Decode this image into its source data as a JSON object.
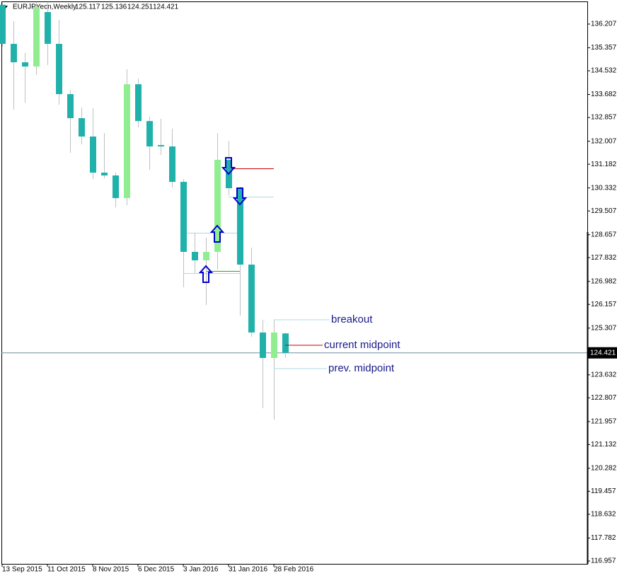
{
  "chart_data": {
    "type": "candlestick",
    "title": "EURJPYecn,Weekly",
    "categories": [
      "13 Sep 2015",
      null,
      null,
      null,
      "11 Oct 2015",
      null,
      null,
      null,
      "8 Nov 2015",
      null,
      null,
      null,
      "6 Dec 2015",
      null,
      null,
      null,
      "3 Jan 2016",
      null,
      null,
      null,
      "31 Jan 2016",
      null,
      null,
      null,
      "28 Feb 2016",
      null
    ],
    "open": [
      136.9,
      135.497,
      134.837,
      134.685,
      136.638,
      135.497,
      133.696,
      132.834,
      132.175,
      130.881,
      130.78,
      129.968,
      134.05,
      132.73,
      131.87,
      131.82,
      130.55,
      128.04,
      127.736,
      128.04,
      131.34,
      130.323,
      127.584,
      125.15,
      124.236,
      125.117
    ],
    "high": [
      137.0,
      136.31,
      135.167,
      137.0,
      137.0,
      136.36,
      133.85,
      133.214,
      133.19,
      132.3,
      130.88,
      134.584,
      134.254,
      132.885,
      132.81,
      132.454,
      130.65,
      128.725,
      128.55,
      132.3,
      132.02,
      130.374,
      128.19,
      125.606,
      125.606,
      125.136
    ],
    "low": [
      135.4,
      133.14,
      133.39,
      134.38,
      134.736,
      133.316,
      131.59,
      131.895,
      130.65,
      130.68,
      129.64,
      129.715,
      132.504,
      130.98,
      131.515,
      130.35,
      126.77,
      127.28,
      126.14,
      127.41,
      130.07,
      125.76,
      124.998,
      122.436,
      122.03,
      124.251
    ],
    "close": [
      135.497,
      134.837,
      134.685,
      136.816,
      135.497,
      133.696,
      132.834,
      132.175,
      130.881,
      130.78,
      129.968,
      134.05,
      132.73,
      131.82,
      131.82,
      130.55,
      128.04,
      127.736,
      128.04,
      131.34,
      130.323,
      127.584,
      125.15,
      124.236,
      125.15,
      124.421
    ],
    "up_color": "#90ee90",
    "down_color": "#20b2aa",
    "wick_color": "#c0c0c0",
    "ylim": [
      116.856,
      137.019
    ],
    "yticks": [
      136.207,
      135.357,
      134.532,
      133.682,
      132.857,
      132.007,
      131.182,
      130.332,
      129.507,
      128.657,
      127.832,
      126.982,
      126.157,
      125.307,
      123.632,
      122.807,
      121.957,
      121.132,
      120.282,
      119.457,
      118.632,
      117.782,
      116.957
    ],
    "annotations": [
      {
        "text": "breakout",
        "value": 125.606,
        "color": "#add8e6"
      },
      {
        "text": "current midpoint",
        "value": 124.693,
        "color": "#cc0000"
      },
      {
        "text": "prev. midpoint",
        "value": 123.856,
        "color": "#add8e6"
      }
    ]
  }
}
